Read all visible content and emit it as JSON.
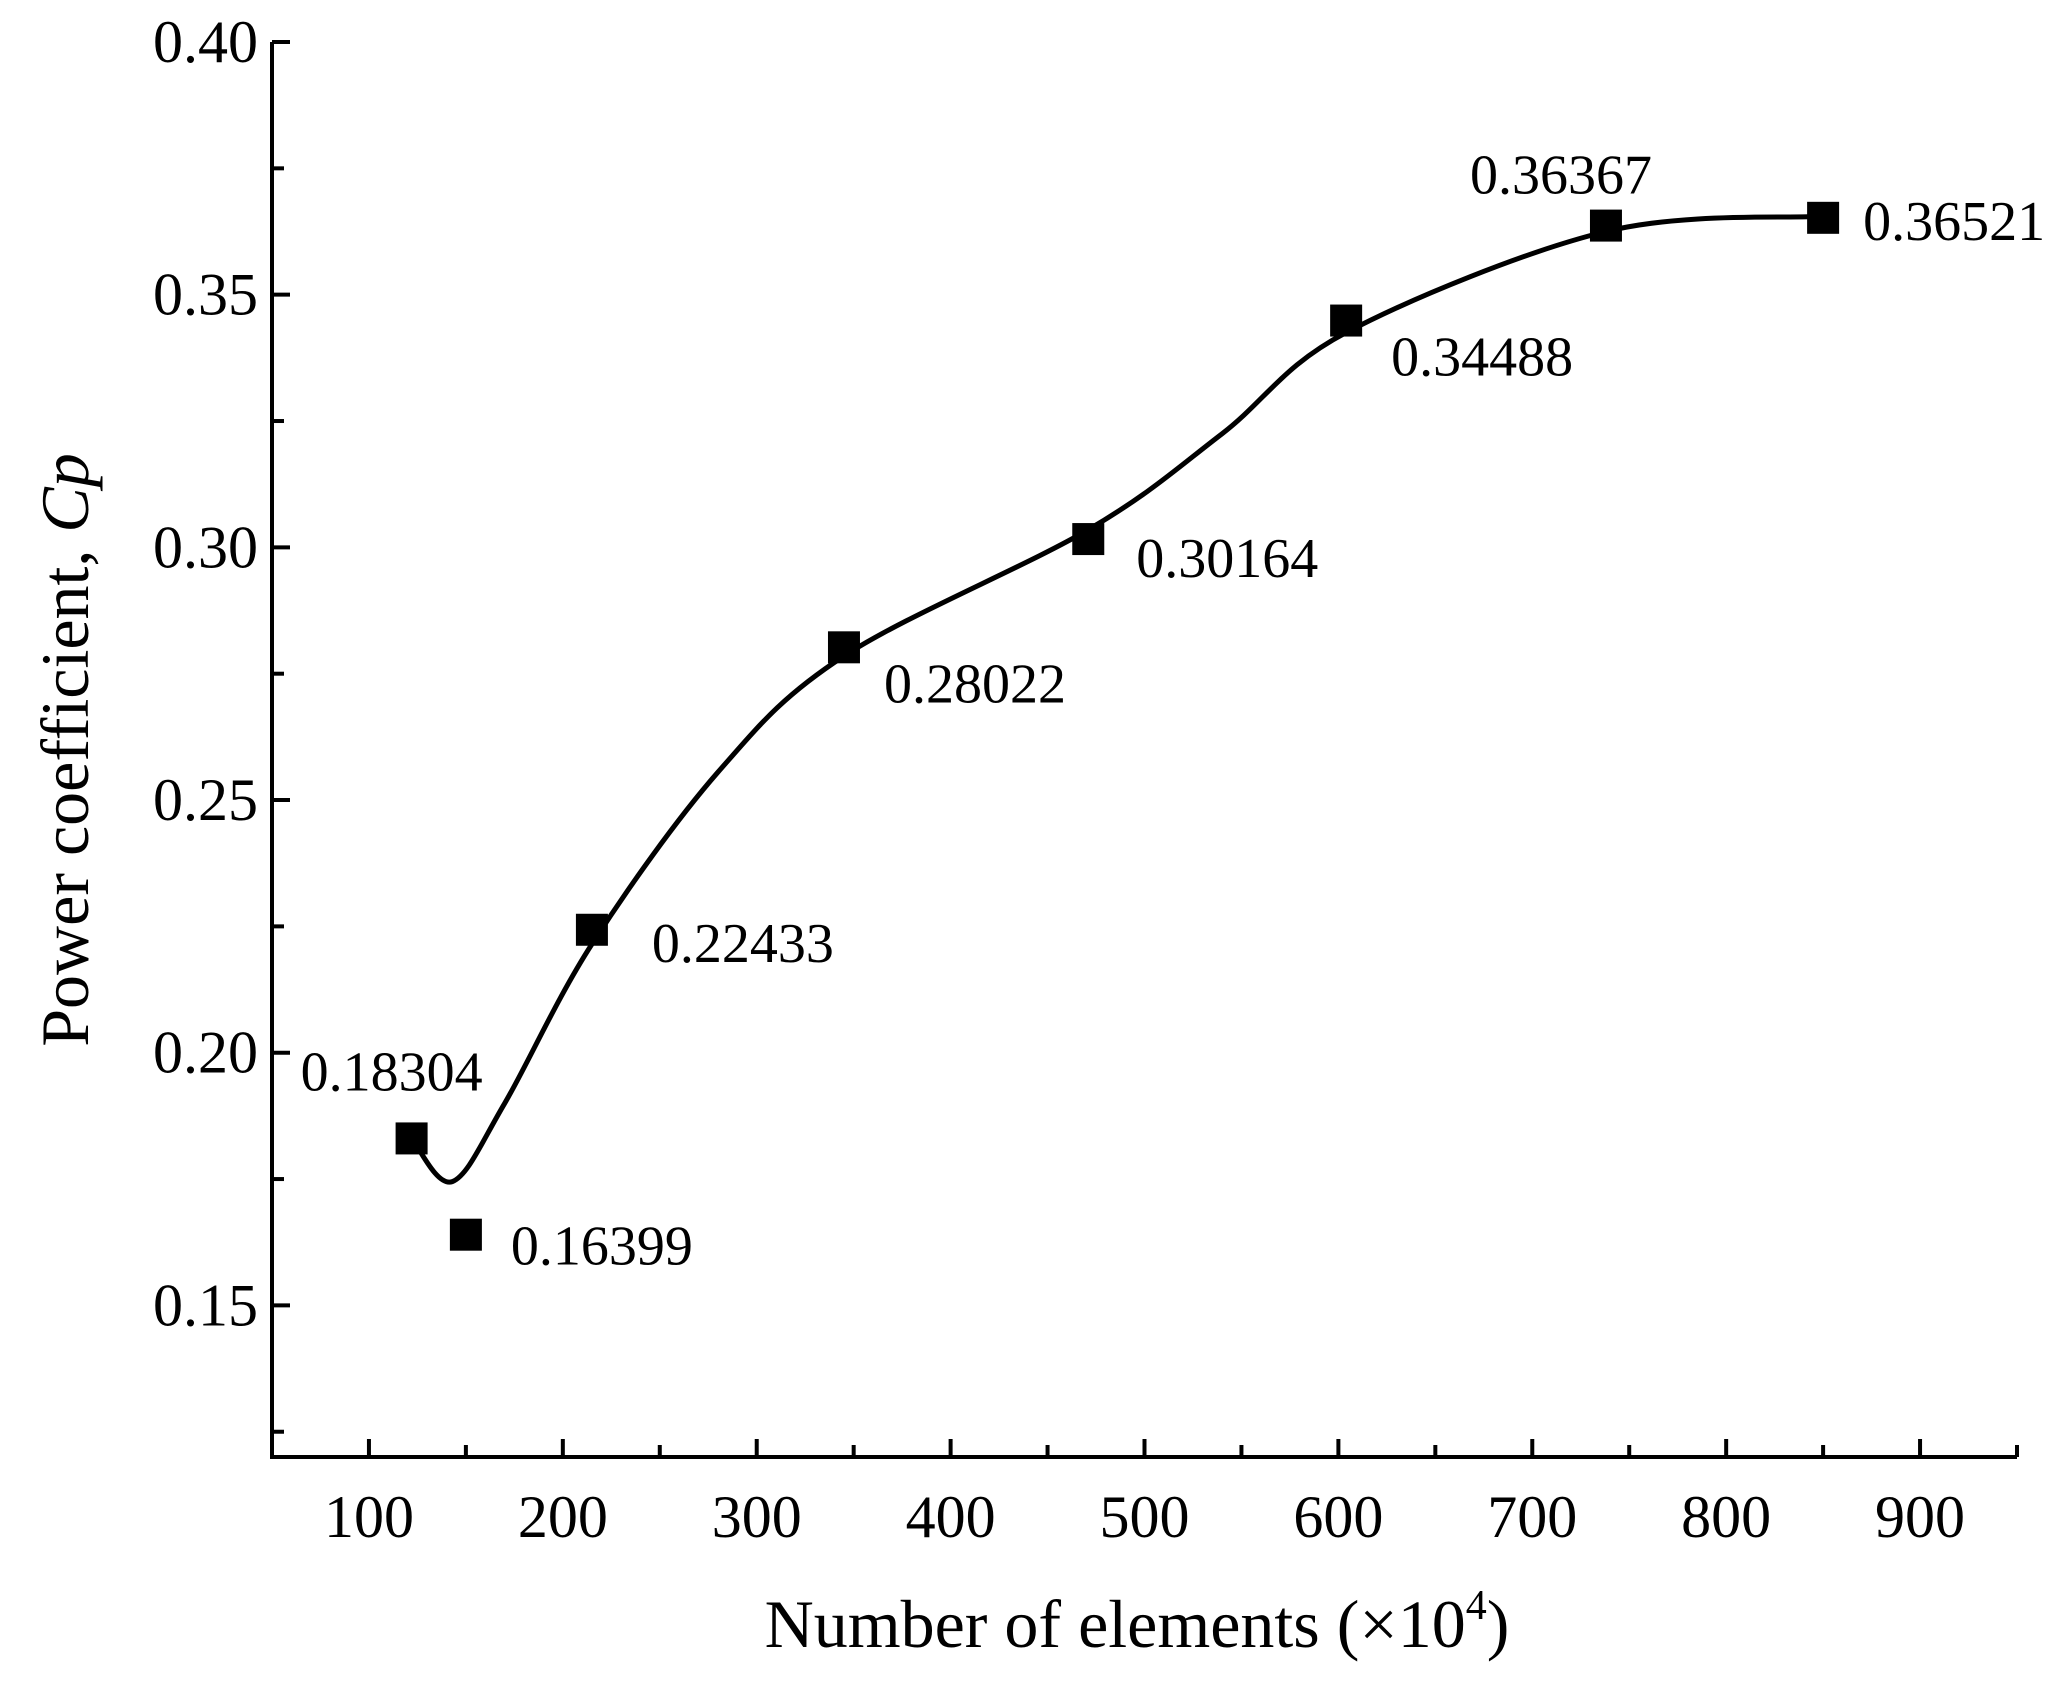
{
  "chart_data": {
    "type": "line",
    "title": "",
    "xlabel": "Number of elements (×10",
    "xlabel_sup": "4",
    "xlabel_close": ")",
    "ylabel": "Power coefficient, ",
    "ylabel_symbol": "Cp",
    "xlim": [
      50,
      950
    ],
    "ylim": [
      0.12,
      0.4
    ],
    "x_ticks": [
      100,
      200,
      300,
      400,
      500,
      600,
      700,
      800,
      900
    ],
    "x_tick_labels": [
      "100",
      "200",
      "300",
      "400",
      "500",
      "600",
      "700",
      "800",
      "900"
    ],
    "y_ticks": [
      0.15,
      0.2,
      0.25,
      0.3,
      0.35,
      0.4
    ],
    "y_tick_labels": [
      "0.15",
      "0.20",
      "0.25",
      "0.30",
      "0.35",
      "0.40"
    ],
    "grid": false,
    "legend": "none",
    "marker": "square",
    "color": "#000000",
    "series": [
      {
        "x": [
          122,
          150,
          215,
          345,
          471,
          604,
          738,
          850
        ],
        "y": [
          0.18304,
          0.16399,
          0.22433,
          0.28022,
          0.30164,
          0.34488,
          0.36367,
          0.36521
        ],
        "labels": [
          "0.18304",
          "0.16399",
          "0.22433",
          "0.28022",
          "0.30164",
          "0.34488",
          "0.36367",
          "0.36521"
        ]
      }
    ]
  }
}
